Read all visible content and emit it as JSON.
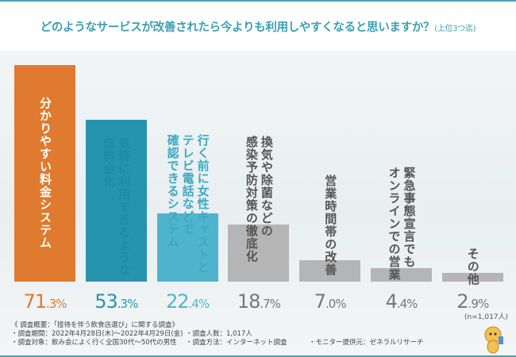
{
  "header": {
    "title": "どのようなサービスが改善されたら今よりも利用しやすくなると思いますか？",
    "subtitle": "(上位3つ迄)"
  },
  "chart_data": {
    "type": "bar",
    "title": "どのようなサービスが改善されたら今よりも利用しやすくなると思いますか？(上位3つ迄)",
    "categories": [
      "分かりやすい料金システム",
      "気軽に利用できるような低料金化",
      "行く前に女性キャストとテレビ電話などで確認できるシステム",
      "換気や除菌などの感染予防対策の徹底化",
      "営業時間帯の改善",
      "緊急事態宣言でもオンラインでの営業",
      "その他"
    ],
    "category_lines": [
      [
        "分かりやすい料金システム"
      ],
      [
        "気軽に利用できるような",
        "低料金化"
      ],
      [
        "行く前に女性キャストと",
        "テレビ電話などで",
        "確認できるシステム"
      ],
      [
        "換気や除菌などの",
        "感染予防対策の徹底化"
      ],
      [
        "営業時間帯の改善"
      ],
      [
        "緊急事態宣言でも",
        "オンラインでの営業"
      ],
      [
        "その他"
      ]
    ],
    "values": [
      71.3,
      53.3,
      22.4,
      18.7,
      7.0,
      4.4,
      2.9
    ],
    "value_labels": [
      "71.3%",
      "53.3%",
      "22.4%",
      "18.7%",
      "7.0%",
      "4.4%",
      "2.9%"
    ],
    "unit": "%",
    "ylim": [
      0,
      75
    ],
    "colors": [
      "#e07a2e",
      "#2794ad",
      "#4fb5cc",
      "#b5b5b5",
      "#b5b5b5",
      "#b5b5b5",
      "#b5b5b5"
    ],
    "label_colors": [
      "#ffffff",
      "#1f8aa3",
      "#3aaac2",
      "#555555",
      "#555555",
      "#555555",
      "#555555"
    ],
    "value_colors": [
      "#e07a2e",
      "#2794ad",
      "#4fb5cc",
      "#777777",
      "#777777",
      "#777777",
      "#777777"
    ],
    "note": "(n=1,017人)"
  },
  "footer": {
    "heading": "《 調査概要：「接待を伴う飲食店選び」に関する調査》",
    "period": "・調査期間：2022年4月28日(木)～2022年4月29日(金)",
    "count": "・調査人数：1,017人",
    "target": "・調査対象：飲み会によく行く全国30代～50代の男性",
    "method": "・調査方法：インターネット調査",
    "provider": "・モニター提供元：ゼネラルリサーチ"
  }
}
